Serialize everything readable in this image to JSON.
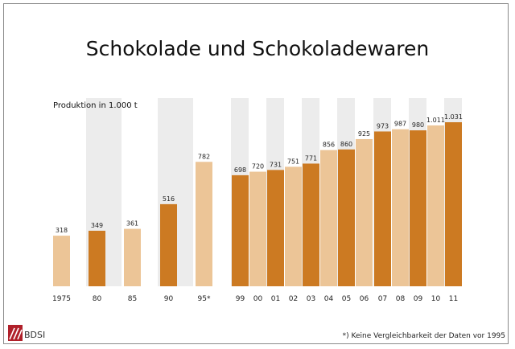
{
  "chart_data": {
    "type": "bar",
    "title": "Schokolade und Schokoladewaren",
    "ylabel": "Produktion in 1.000 t",
    "categories": [
      "1975",
      "80",
      "85",
      "90",
      "95*",
      "99",
      "00",
      "01",
      "02",
      "03",
      "04",
      "05",
      "06",
      "07",
      "08",
      "09",
      "10",
      "11"
    ],
    "values": [
      318,
      349,
      361,
      516,
      782,
      698,
      720,
      731,
      751,
      771,
      856,
      860,
      925,
      973,
      987,
      980,
      1011,
      1031
    ],
    "value_labels": [
      "318",
      "349",
      "361",
      "516",
      "782",
      "698",
      "720",
      "731",
      "751",
      "771",
      "856",
      "860",
      "925",
      "973",
      "987",
      "980",
      "1.011",
      "1.031"
    ],
    "ylim": [
      0,
      1031
    ],
    "grid": false,
    "colors": {
      "light": "#ecc597",
      "dark": "#cc7a22",
      "band": "#ececec"
    }
  },
  "footnote": "*) Keine Vergleichbarkeit der Daten vor 1995",
  "logo_text": "BDSI"
}
